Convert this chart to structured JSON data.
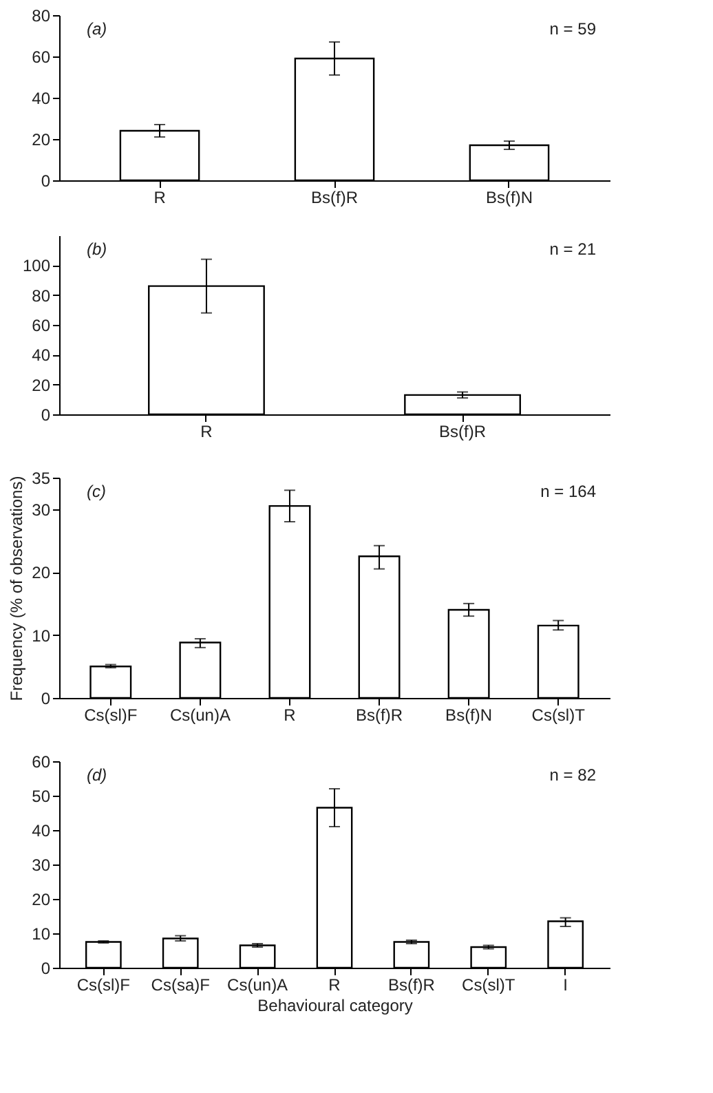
{
  "chart_data": [
    {
      "type": "bar",
      "categories": [
        "R",
        "Bs(f)R",
        "Bs(f)N"
      ],
      "values": [
        24,
        59,
        17
      ],
      "errors": [
        [
          21,
          27
        ],
        [
          51,
          67
        ],
        [
          15,
          19
        ]
      ],
      "color": "#ffffff",
      "ylim": [
        0,
        80
      ],
      "yticks": [
        0,
        20,
        40,
        60,
        80
      ],
      "grid": false,
      "annotations": [
        "(a)",
        "n = 59"
      ]
    },
    {
      "type": "bar",
      "categories": [
        "R",
        "Bs(f)R"
      ],
      "values": [
        86,
        13
      ],
      "errors": [
        [
          68,
          104
        ],
        [
          11,
          15
        ]
      ],
      "color": "#ffffff",
      "ylim": [
        0,
        120
      ],
      "yticks": [
        0,
        20,
        40,
        60,
        80,
        100
      ],
      "grid": false,
      "annotations": [
        "(b)",
        "n = 21"
      ]
    },
    {
      "type": "bar",
      "categories": [
        "Cs(sl)F",
        "Cs(un)A",
        "R",
        "Bs(f)R",
        "Bs(f)N",
        "Cs(sl)T"
      ],
      "values": [
        5,
        8.8,
        30.5,
        22.5,
        14,
        11.5
      ],
      "errors": [
        [
          4.8,
          5.3
        ],
        [
          8,
          9.4
        ],
        [
          28,
          33
        ],
        [
          20.5,
          24.2
        ],
        [
          13,
          15
        ],
        [
          10.8,
          12.3
        ]
      ],
      "color": "#ffffff",
      "ylim": [
        0,
        35
      ],
      "yticks": [
        0,
        10,
        20,
        30,
        35
      ],
      "grid": false,
      "ylabel": "Frequency (% of observations)",
      "annotations": [
        "(c)",
        "n = 164"
      ]
    },
    {
      "type": "bar",
      "categories": [
        "Cs(sl)F",
        "Cs(sa)F",
        "Cs(un)A",
        "R",
        "Bs(f)R",
        "Cs(sl)T",
        "I"
      ],
      "values": [
        7.5,
        8.5,
        6.5,
        46.5,
        7.5,
        6,
        13.5
      ],
      "errors": [
        [
          7.2,
          7.8
        ],
        [
          7.8,
          9.3
        ],
        [
          6,
          7
        ],
        [
          41,
          52
        ],
        [
          7,
          8
        ],
        [
          5.5,
          6.5
        ],
        [
          12,
          14.5
        ]
      ],
      "color": "#ffffff",
      "ylim": [
        0,
        60
      ],
      "yticks": [
        0,
        10,
        20,
        30,
        40,
        50,
        60
      ],
      "grid": false,
      "xlabel": "Behavioural category",
      "annotations": [
        "(d)",
        "n = 82"
      ]
    }
  ]
}
